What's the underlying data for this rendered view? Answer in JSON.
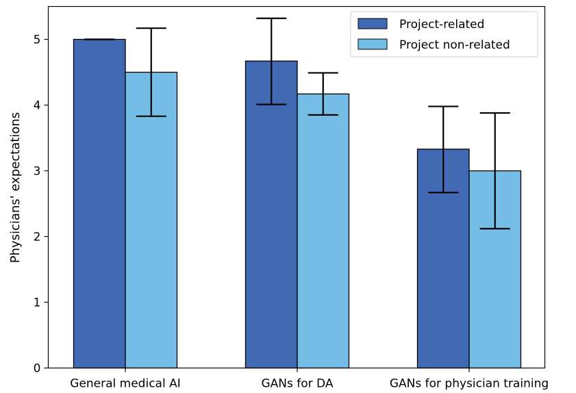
{
  "chart_data": {
    "type": "bar",
    "title": "",
    "xlabel": "",
    "ylabel": "Physicians' expectations",
    "categories": [
      "General medical AI",
      "GANs for DA",
      "GANs for physician training"
    ],
    "series": [
      {
        "name": "Project-related",
        "color": "#4169b4",
        "values": [
          5.0,
          4.67,
          3.33
        ],
        "error_low": [
          5.0,
          4.01,
          2.67
        ],
        "error_high": [
          5.0,
          5.32,
          3.98
        ]
      },
      {
        "name": "Project non-related",
        "color": "#74bde6",
        "values": [
          4.5,
          4.17,
          3.0
        ],
        "error_low": [
          3.83,
          3.85,
          2.12
        ],
        "error_high": [
          5.17,
          4.49,
          3.88
        ]
      }
    ],
    "ylim": [
      0,
      5.5
    ],
    "yticks": [
      "0",
      "1",
      "2",
      "3",
      "4",
      "5"
    ],
    "grid": false,
    "legend_position": "top-right"
  }
}
